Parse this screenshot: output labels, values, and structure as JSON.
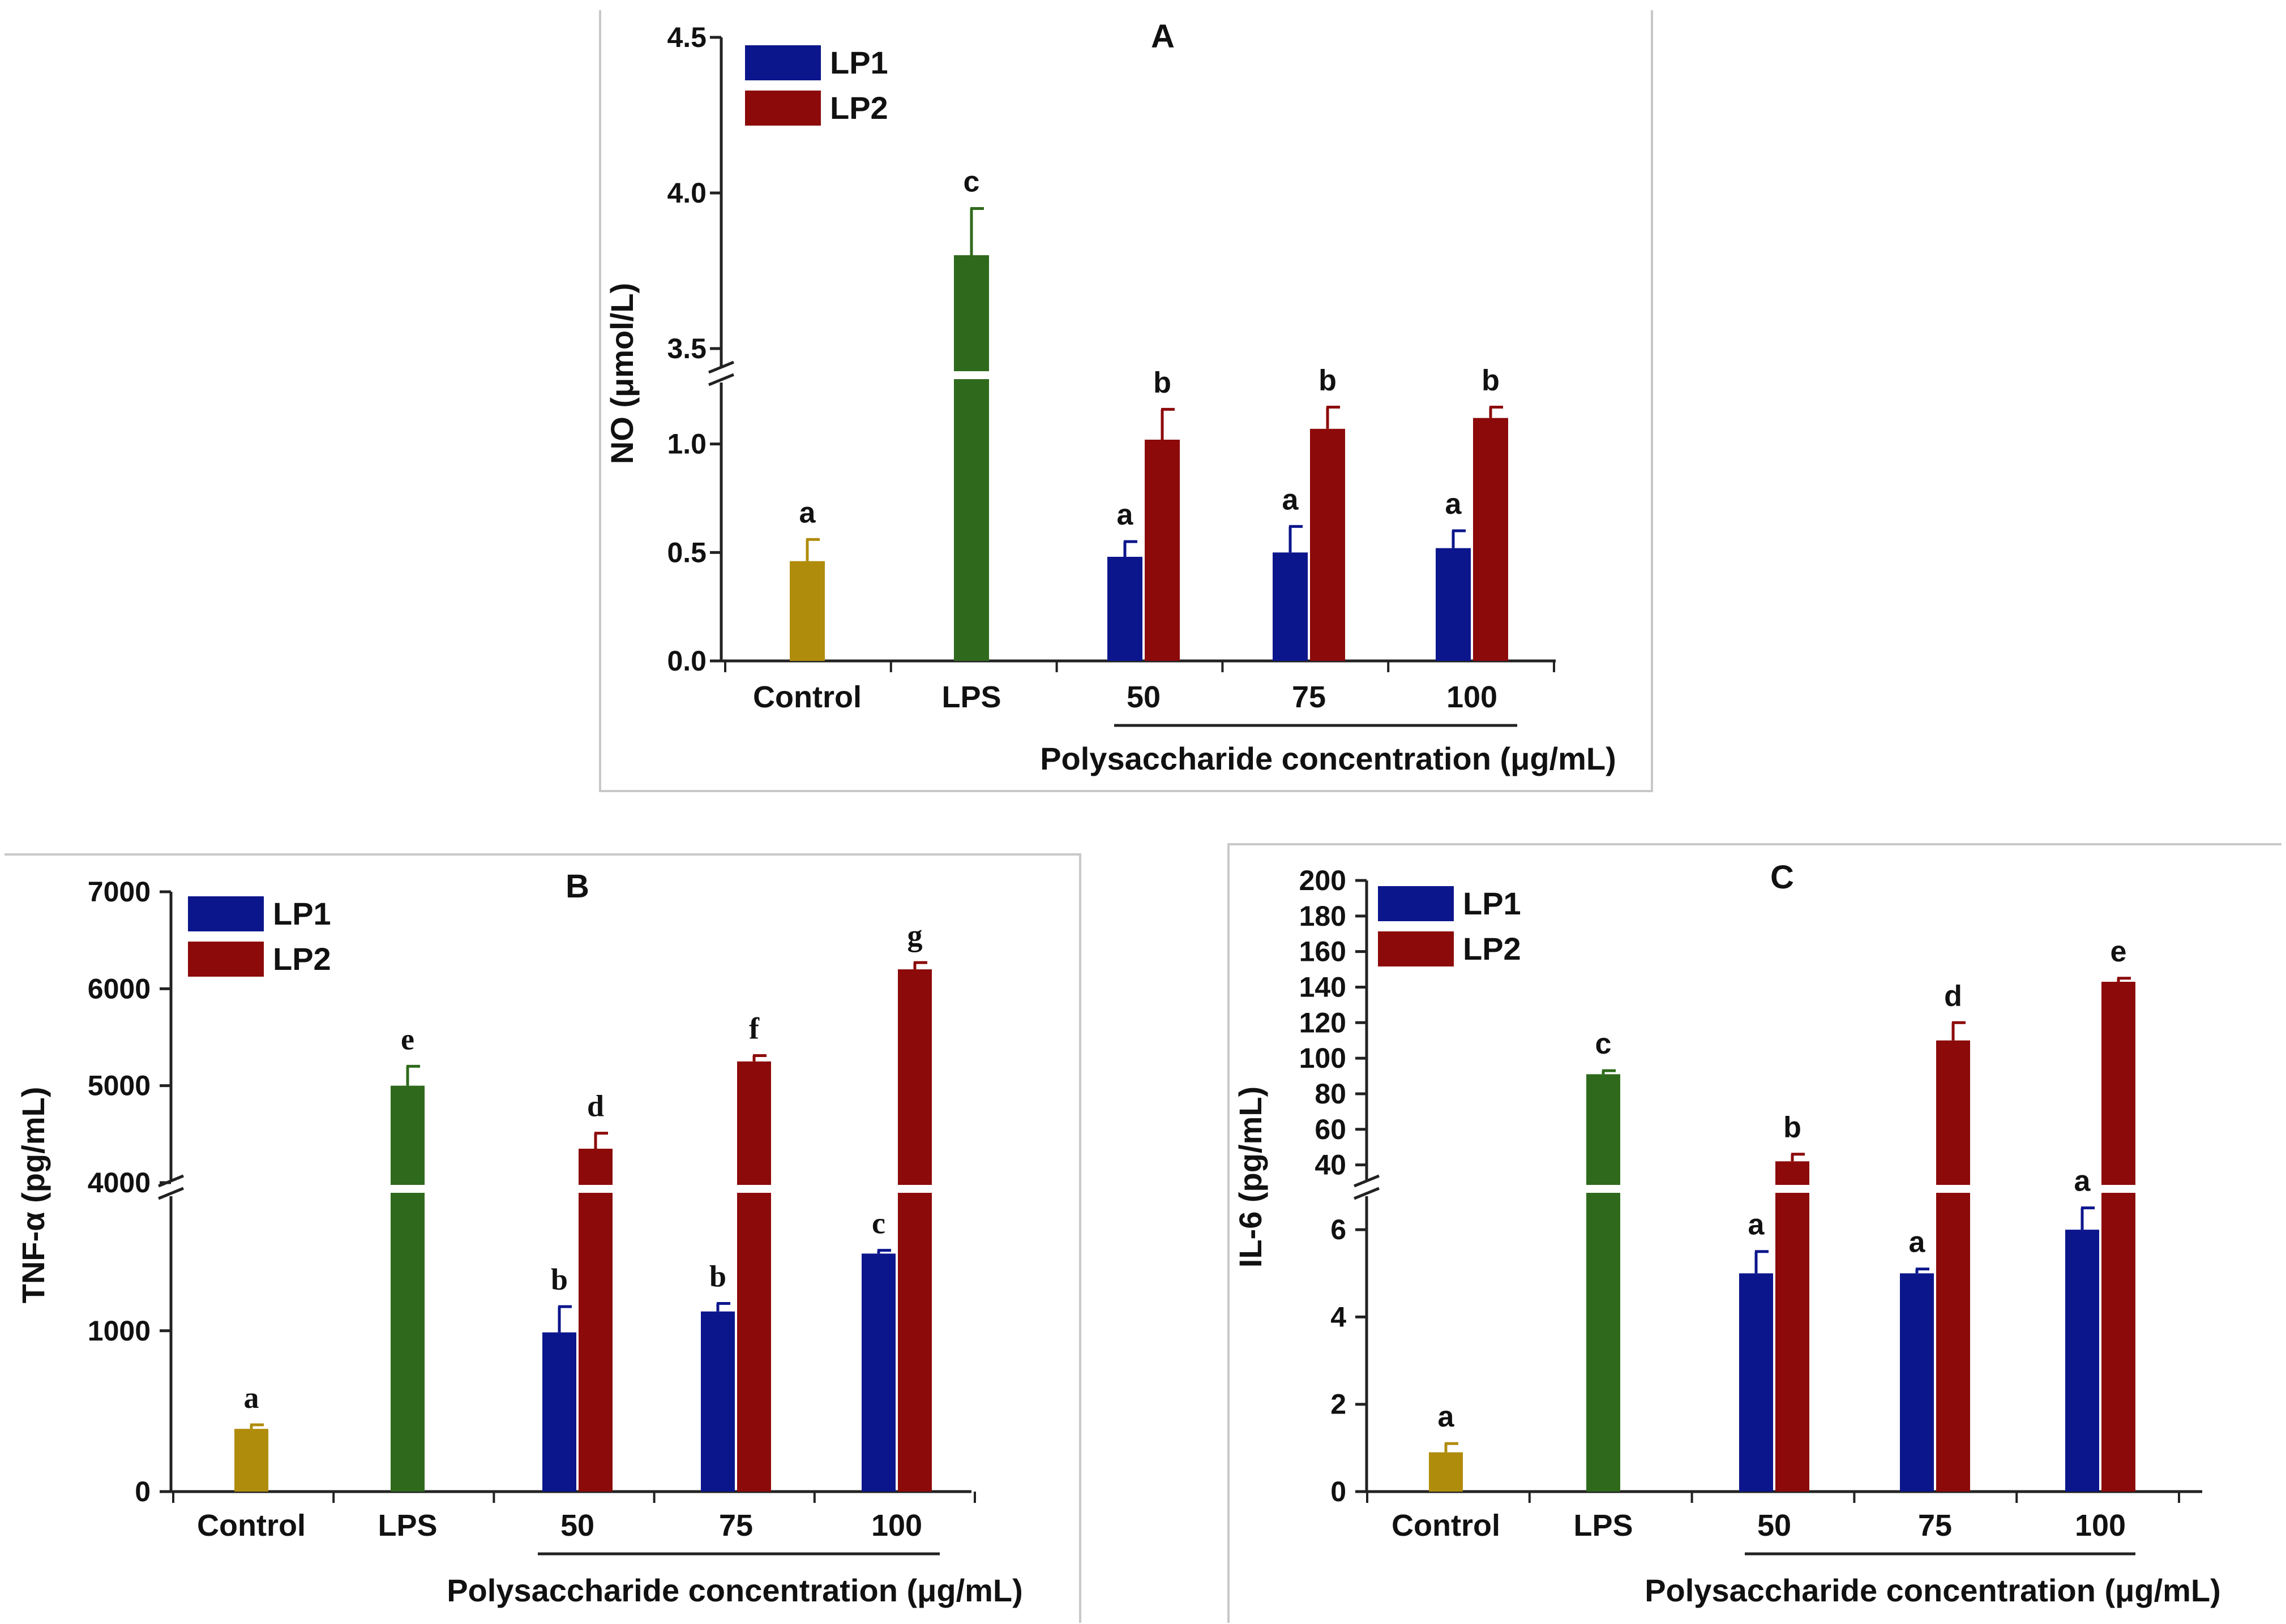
{
  "chart_data": [
    {
      "panel": "A",
      "type": "bar",
      "title": "A",
      "ylabel": "NO (μmol/L)",
      "xlabel": "Polysaccharide concentration (μg/mL)",
      "ylim": [
        0,
        4.5
      ],
      "axis_break": {
        "lower_max": 1.2,
        "upper_min": 3.5
      },
      "y_ticks": [
        "0.0",
        "0.5",
        "1.0",
        "3.5",
        "4.0",
        "4.5"
      ],
      "categories": [
        "Control",
        "LPS",
        "50",
        "75",
        "100"
      ],
      "legend": [
        "LP1",
        "LP2"
      ],
      "colors": {
        "Control": "#b08c0c",
        "LPS": "#2f6a1c",
        "LP1": "#0c168c",
        "LP2": "#8c0a0a"
      },
      "bars": [
        {
          "category": "Control",
          "series": "Control",
          "value": 0.46,
          "error": 0.1,
          "sig": "a"
        },
        {
          "category": "LPS",
          "series": "LPS",
          "value": 3.8,
          "error": 0.15,
          "sig": "c"
        },
        {
          "category": "50",
          "series": "LP1",
          "value": 0.48,
          "error": 0.07,
          "sig": "a"
        },
        {
          "category": "50",
          "series": "LP2",
          "value": 1.02,
          "error": 0.14,
          "sig": "b"
        },
        {
          "category": "75",
          "series": "LP1",
          "value": 0.5,
          "error": 0.12,
          "sig": "a"
        },
        {
          "category": "75",
          "series": "LP2",
          "value": 1.07,
          "error": 0.1,
          "sig": "b"
        },
        {
          "category": "100",
          "series": "LP1",
          "value": 0.52,
          "error": 0.08,
          "sig": "a"
        },
        {
          "category": "100",
          "series": "LP2",
          "value": 1.12,
          "error": 0.05,
          "sig": "b"
        }
      ]
    },
    {
      "panel": "B",
      "type": "bar",
      "title": "B",
      "ylabel": "TNF-α (pg/mL)",
      "xlabel": "Polysaccharide concentration (μg/mL)",
      "ylim": [
        0,
        7000
      ],
      "axis_break": {
        "lower_max": 1900,
        "upper_min": 4000
      },
      "y_ticks": [
        "0",
        "1000",
        "4000",
        "5000",
        "6000",
        "7000"
      ],
      "categories": [
        "Control",
        "LPS",
        "50",
        "75",
        "100"
      ],
      "legend": [
        "LP1",
        "LP2"
      ],
      "colors": {
        "Control": "#b08c0c",
        "LPS": "#2f6a1c",
        "LP1": "#0c168c",
        "LP2": "#8c0a0a"
      },
      "bars": [
        {
          "category": "Control",
          "series": "Control",
          "value": 390,
          "error": 25,
          "sig": "a"
        },
        {
          "category": "LPS",
          "series": "LPS",
          "value": 5000,
          "error": 200,
          "sig": "e"
        },
        {
          "category": "50",
          "series": "LP1",
          "value": 990,
          "error": 160,
          "sig": "b"
        },
        {
          "category": "50",
          "series": "LP2",
          "value": 4350,
          "error": 160,
          "sig": "d"
        },
        {
          "category": "75",
          "series": "LP1",
          "value": 1120,
          "error": 50,
          "sig": "b"
        },
        {
          "category": "75",
          "series": "LP2",
          "value": 5250,
          "error": 60,
          "sig": "f"
        },
        {
          "category": "100",
          "series": "LP1",
          "value": 1480,
          "error": 20,
          "sig": "c"
        },
        {
          "category": "100",
          "series": "LP2",
          "value": 6200,
          "error": 70,
          "sig": "g"
        }
      ]
    },
    {
      "panel": "C",
      "type": "bar",
      "title": "C",
      "ylabel": "IL-6 (pg/mL)",
      "xlabel": "Polysaccharide concentration (μg/mL)",
      "ylim": [
        0,
        200
      ],
      "axis_break": {
        "lower_max": 7,
        "upper_min": 30
      },
      "y_ticks": [
        "0",
        "2",
        "4",
        "6",
        "40",
        "60",
        "80",
        "100",
        "120",
        "140",
        "160",
        "180",
        "200"
      ],
      "categories": [
        "Control",
        "LPS",
        "50",
        "75",
        "100"
      ],
      "legend": [
        "LP1",
        "LP2"
      ],
      "colors": {
        "Control": "#b08c0c",
        "LPS": "#2f6a1c",
        "LP1": "#0c168c",
        "LP2": "#8c0a0a"
      },
      "bars": [
        {
          "category": "Control",
          "series": "Control",
          "value": 0.9,
          "error": 0.2,
          "sig": "a"
        },
        {
          "category": "LPS",
          "series": "LPS",
          "value": 91,
          "error": 2,
          "sig": "c"
        },
        {
          "category": "50",
          "series": "LP1",
          "value": 5.0,
          "error": 0.5,
          "sig": "a"
        },
        {
          "category": "50",
          "series": "LP2",
          "value": 42,
          "error": 4,
          "sig": "b"
        },
        {
          "category": "75",
          "series": "LP1",
          "value": 5.0,
          "error": 0.1,
          "sig": "a"
        },
        {
          "category": "75",
          "series": "LP2",
          "value": 110,
          "error": 10,
          "sig": "d"
        },
        {
          "category": "100",
          "series": "LP1",
          "value": 6.0,
          "error": 0.5,
          "sig": "a"
        },
        {
          "category": "100",
          "series": "LP2",
          "value": 143,
          "error": 2,
          "sig": "e"
        }
      ]
    }
  ]
}
